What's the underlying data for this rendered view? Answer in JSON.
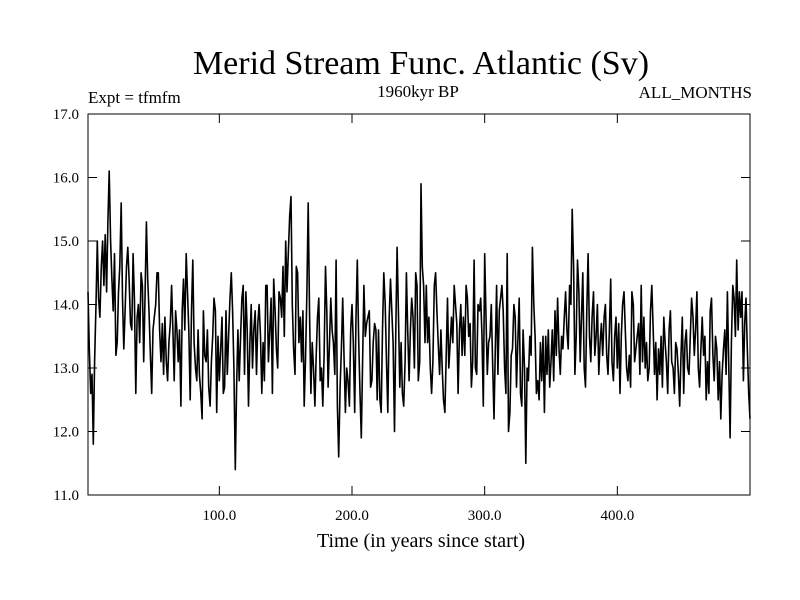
{
  "chart_data": {
    "type": "line",
    "title": "Merid Stream Func. Atlantic (Sv)",
    "left_note": "Expt = tfmfm",
    "center_note": "1960kyr BP",
    "right_note": "ALL_MONTHS",
    "xlabel": "Time (in years since start)",
    "ylabel": "",
    "xlim": [
      1,
      500
    ],
    "ylim": [
      11.0,
      17.0
    ],
    "x_ticks": [
      100,
      200,
      300,
      400
    ],
    "x_tick_labels": [
      "100.0",
      "200.0",
      "300.0",
      "400.0"
    ],
    "y_ticks": [
      11,
      12,
      13,
      14,
      15,
      16,
      17
    ],
    "y_tick_labels": [
      "11.0",
      "12.0",
      "13.0",
      "14.0",
      "15.0",
      "16.0",
      "17.0"
    ],
    "series": [
      {
        "name": "Merid Stream Func. Atlantic",
        "color": "#000000",
        "x_start": 1,
        "x_step": 1,
        "values": [
          14.2,
          13.3,
          12.6,
          12.9,
          11.8,
          13.1,
          14.0,
          15.0,
          14.1,
          13.8,
          14.6,
          15.0,
          14.3,
          15.1,
          14.2,
          15.3,
          16.1,
          15.0,
          14.4,
          13.9,
          14.8,
          13.2,
          13.4,
          14.2,
          14.6,
          15.6,
          14.1,
          13.3,
          13.9,
          14.6,
          14.9,
          14.4,
          13.7,
          13.6,
          14.8,
          14.1,
          12.6,
          13.8,
          14.0,
          13.4,
          14.5,
          14.3,
          13.1,
          14.1,
          15.3,
          14.4,
          13.9,
          13.2,
          12.6,
          13.6,
          13.8,
          14.0,
          14.5,
          14.5,
          13.6,
          13.1,
          13.7,
          12.9,
          13.8,
          13.1,
          12.8,
          13.4,
          13.7,
          14.3,
          13.6,
          12.8,
          13.9,
          13.6,
          13.1,
          13.6,
          12.4,
          13.9,
          14.4,
          13.6,
          14.8,
          14.2,
          13.6,
          12.5,
          13.9,
          14.7,
          13.4,
          13.0,
          12.8,
          13.6,
          12.9,
          12.6,
          12.2,
          13.9,
          13.2,
          13.1,
          13.6,
          12.7,
          12.4,
          13.1,
          13.5,
          14.1,
          13.9,
          12.3,
          13.5,
          12.8,
          13.3,
          13.8,
          12.6,
          12.7,
          13.9,
          12.9,
          13.5,
          14.1,
          14.5,
          13.9,
          13.0,
          11.4,
          12.7,
          13.6,
          12.8,
          13.5,
          14.1,
          14.3,
          12.9,
          14.2,
          13.6,
          12.4,
          13.4,
          14.0,
          13.0,
          13.6,
          13.9,
          12.9,
          13.7,
          14.0,
          13.5,
          12.6,
          13.4,
          12.8,
          14.3,
          14.3,
          13.1,
          13.6,
          14.1,
          12.6,
          14.4,
          13.9,
          13.3,
          13.0,
          14.2,
          14.1,
          13.8,
          14.6,
          13.5,
          15.0,
          14.2,
          14.8,
          15.4,
          15.7,
          14.0,
          13.3,
          12.9,
          14.6,
          14.5,
          13.4,
          13.8,
          13.1,
          13.9,
          12.4,
          13.2,
          14.2,
          15.6,
          13.8,
          12.6,
          13.4,
          13.0,
          12.4,
          13.2,
          13.8,
          14.1,
          12.8,
          13.0,
          12.4,
          13.2,
          14.6,
          13.9,
          12.7,
          13.4,
          14.1,
          13.6,
          13.4,
          12.9,
          14.7,
          12.4,
          11.6,
          12.7,
          13.3,
          14.1,
          13.2,
          12.3,
          13.0,
          12.8,
          12.4,
          13.6,
          14.0,
          13.4,
          12.3,
          13.8,
          14.7,
          13.5,
          12.6,
          11.9,
          13.1,
          14.3,
          13.5,
          13.7,
          13.8,
          13.9,
          12.7,
          12.8,
          13.4,
          13.7,
          13.6,
          12.5,
          13.6,
          12.5,
          12.3,
          13.6,
          14.5,
          14.0,
          13.1,
          12.3,
          13.8,
          14.4,
          13.9,
          13.4,
          12.0,
          13.6,
          14.9,
          13.9,
          12.7,
          13.4,
          12.6,
          12.4,
          13.1,
          14.5,
          13.6,
          12.8,
          13.6,
          14.1,
          13.8,
          13.0,
          14.5,
          14.3,
          12.8,
          13.1,
          15.9,
          14.6,
          14.3,
          13.4,
          14.3,
          13.4,
          13.8,
          13.0,
          12.6,
          13.1,
          14.3,
          14.5,
          13.9,
          13.4,
          12.9,
          13.6,
          13.0,
          12.5,
          12.3,
          13.2,
          14.1,
          13.0,
          13.4,
          13.8,
          13.4,
          14.3,
          14.0,
          13.7,
          12.6,
          13.6,
          14.0,
          13.2,
          13.8,
          13.2,
          14.3,
          14.1,
          13.5,
          13.7,
          12.7,
          13.1,
          14.7,
          13.0,
          12.9,
          14.0,
          13.9,
          14.1,
          13.5,
          12.4,
          14.8,
          13.8,
          12.9,
          13.4,
          13.5,
          14.0,
          13.1,
          12.2,
          13.3,
          14.3,
          12.9,
          13.9,
          14.1,
          14.3,
          13.9,
          13.0,
          12.6,
          14.8,
          12.0,
          12.3,
          13.2,
          13.3,
          14.0,
          13.8,
          12.7,
          13.4,
          14.1,
          12.6,
          12.4,
          13.6,
          13.0,
          11.5,
          13.0,
          12.8,
          13.5,
          13.2,
          14.9,
          14.0,
          13.5,
          12.6,
          12.8,
          12.5,
          13.4,
          12.8,
          13.5,
          12.3,
          13.5,
          12.9,
          13.6,
          12.7,
          13.1,
          13.6,
          12.8,
          13.9,
          13.2,
          14.1,
          13.3,
          12.9,
          13.5,
          13.3,
          13.8,
          14.2,
          13.6,
          13.3,
          14.3,
          14.0,
          15.5,
          14.6,
          12.9,
          13.5,
          14.7,
          14.2,
          13.1,
          13.8,
          14.5,
          13.0,
          12.7,
          13.9,
          14.8,
          13.5,
          13.1,
          13.8,
          14.2,
          13.2,
          13.5,
          14.0,
          12.9,
          13.4,
          13.7,
          13.2,
          13.8,
          14.0,
          13.2,
          12.9,
          13.6,
          14.4,
          13.1,
          12.8,
          13.5,
          13.8,
          13.0,
          13.7,
          12.6,
          13.5,
          14.0,
          14.2,
          13.6,
          13.0,
          12.8,
          13.2,
          12.7,
          14.2,
          14.0,
          13.1,
          13.3,
          13.5,
          13.7,
          12.9,
          14.3,
          13.1,
          13.8,
          13.0,
          13.4,
          12.8,
          13.0,
          13.9,
          14.3,
          13.6,
          12.9,
          13.4,
          12.5,
          13.3,
          12.9,
          13.5,
          12.7,
          13.8,
          13.4,
          13.1,
          12.6,
          13.6,
          13.9,
          13.1,
          13.0,
          12.6,
          13.4,
          13.3,
          12.9,
          12.4,
          13.2,
          13.8,
          12.6,
          13.4,
          13.6,
          13.0,
          12.9,
          13.5,
          14.1,
          13.8,
          13.2,
          13.6,
          14.2,
          13.0,
          12.7,
          13.3,
          13.8,
          13.2,
          13.5,
          12.5,
          13.1,
          12.6,
          13.9,
          14.1,
          13.2,
          12.8,
          13.5,
          13.3,
          12.5,
          13.1,
          12.2,
          12.9,
          13.3,
          13.6,
          12.9,
          14.2,
          13.0,
          11.9,
          13.4,
          14.3,
          14.1,
          13.5,
          14.7,
          13.6,
          14.2,
          13.8,
          14.2,
          12.8,
          13.7,
          14.1,
          13.3,
          12.6,
          12.2
        ]
      }
    ]
  }
}
